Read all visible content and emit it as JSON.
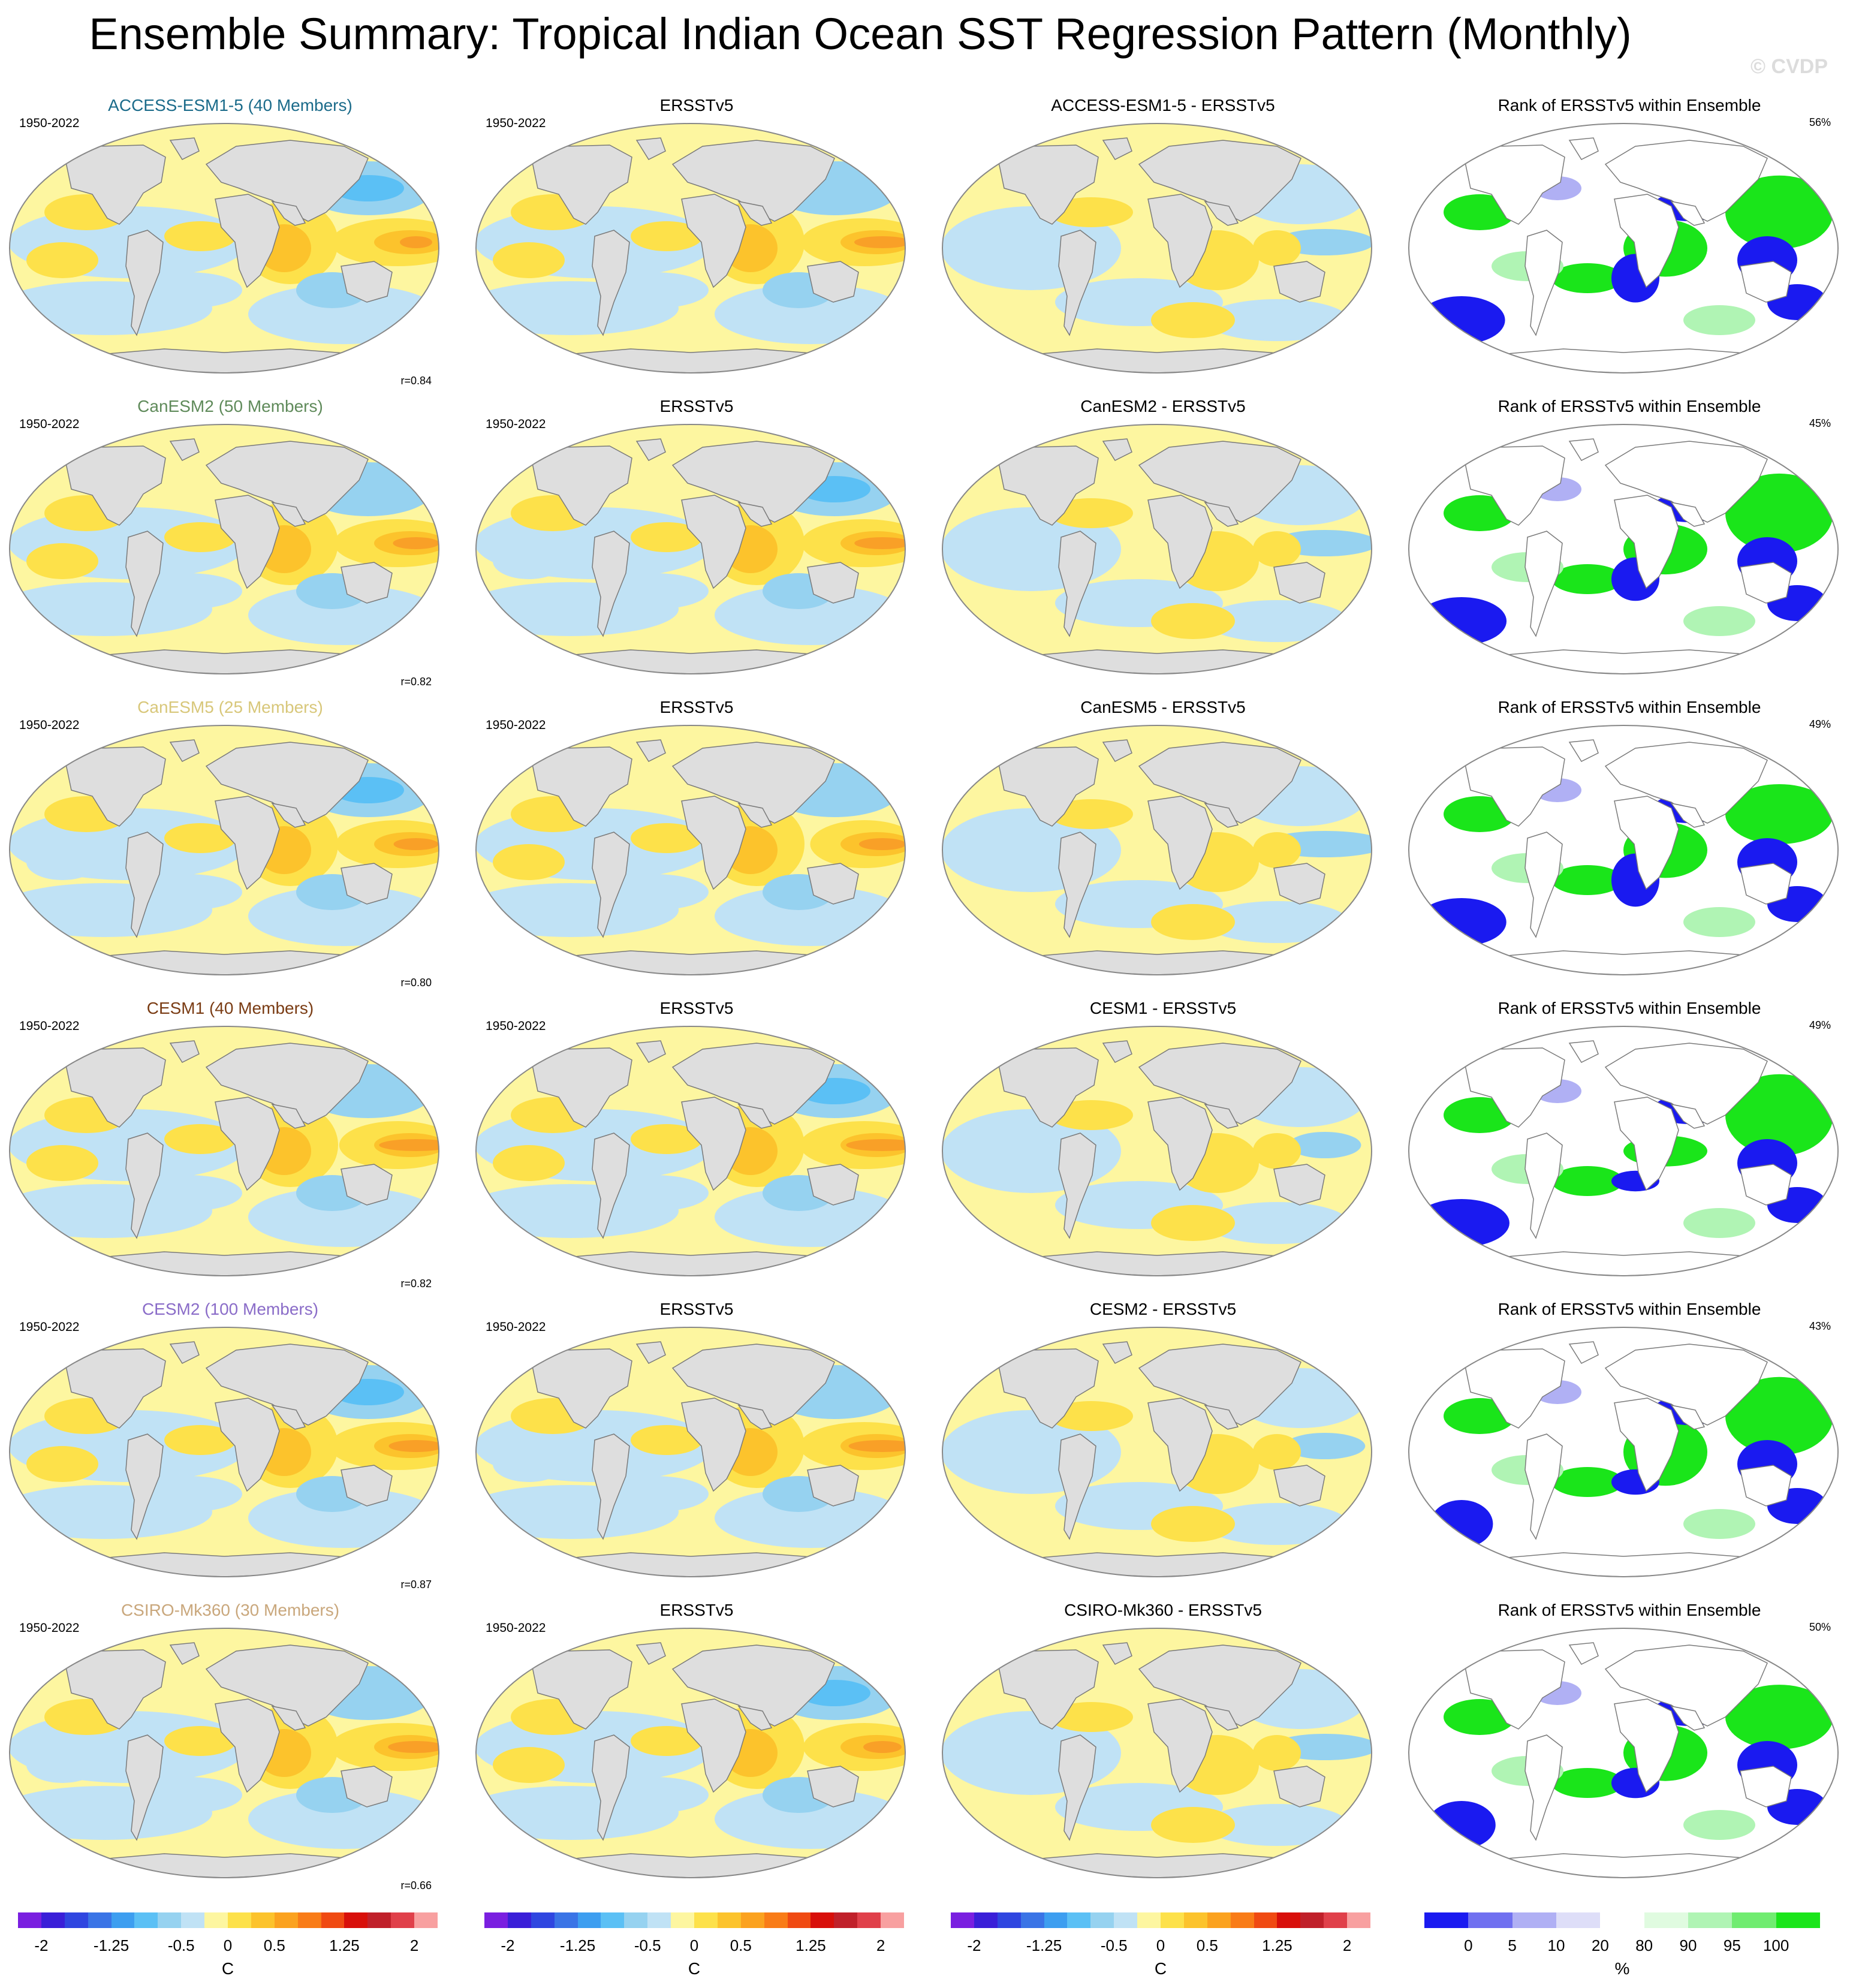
{
  "title": "Ensemble Summary: Tropical Indian Ocean SST Regression Pattern (Monthly)",
  "watermark": "© CVDP",
  "rank_title": "Rank of ERSSTv5 within Ensemble",
  "obs_title": "ERSSTv5",
  "rows": [
    {
      "model": "ACCESS-ESM1-5 (40 Members)",
      "model_color": "#1b6b8a",
      "years": "1950-2022",
      "obs_years": "1950-2022",
      "diff": "ACCESS-ESM1-5 - ERSSTv5",
      "r": "r=0.84",
      "pct": "56%"
    },
    {
      "model": "CanESM2 (50 Members)",
      "model_color": "#5f8a5a",
      "years": "1950-2022",
      "obs_years": "1950-2022",
      "diff": "CanESM2 - ERSSTv5",
      "r": "r=0.82",
      "pct": "45%"
    },
    {
      "model": "CanESM5 (25 Members)",
      "model_color": "#d8c77a",
      "years": "1950-2022",
      "obs_years": "1950-2022",
      "diff": "CanESM5 - ERSSTv5",
      "r": "r=0.80",
      "pct": "49%"
    },
    {
      "model": "CESM1 (40 Members)",
      "model_color": "#7a3c14",
      "years": "1950-2022",
      "obs_years": "1950-2022",
      "diff": "CESM1 - ERSSTv5",
      "r": "r=0.82",
      "pct": "49%"
    },
    {
      "model": "CESM2 (100 Members)",
      "model_color": "#8a6cc8",
      "years": "1950-2022",
      "obs_years": "1950-2022",
      "diff": "CESM2 - ERSSTv5",
      "r": "r=0.87",
      "pct": "43%"
    },
    {
      "model": "CSIRO-Mk360 (30 Members)",
      "model_color": "#c9a77c",
      "years": "1950-2022",
      "obs_years": "1950-2022",
      "diff": "CSIRO-Mk360 - ERSSTv5",
      "r": "r=0.66",
      "pct": "50%"
    }
  ],
  "colorbar_sst": {
    "colors": [
      "#7a1fe0",
      "#3a1fd8",
      "#2f46e0",
      "#3a74e6",
      "#3d9ef0",
      "#5bc0f5",
      "#96d2f0",
      "#c0e2f5",
      "#fdf6a0",
      "#fde14a",
      "#fcc32c",
      "#fba21f",
      "#f97c17",
      "#f04a12",
      "#d80f0a",
      "#c0202a",
      "#e0404a",
      "#f8a0a0"
    ],
    "ticks": [
      "-2",
      "-1.25",
      "-0.5",
      "0",
      "0.5",
      "1.25",
      "2"
    ],
    "unit": "C"
  },
  "colorbar_rank": {
    "colors": [
      "#1a1af0",
      "#7070f0",
      "#b0b0f4",
      "#dedef8",
      "#ffffff",
      "#e0fbe0",
      "#b0f4b4",
      "#70ec70",
      "#1ae51a"
    ],
    "ticks": [
      "0",
      "5",
      "10",
      "20",
      "80",
      "90",
      "95",
      "100"
    ],
    "unit": "%"
  },
  "map_colors": {
    "land": "#dedede",
    "coast": "#7a7a7a",
    "ocean_neutral": "#fdf6a0",
    "warm1": "#fde14a",
    "warm2": "#fcc32c",
    "warm3": "#f9a027",
    "cool1": "#c0e2f5",
    "cool2": "#96d2f0",
    "cool3": "#5bc0f5",
    "rank_low": "#1a1af0",
    "rank_mid": "#b0b0f4",
    "rank_high": "#1ae51a",
    "rank_highlight": "#b0f4b4"
  }
}
